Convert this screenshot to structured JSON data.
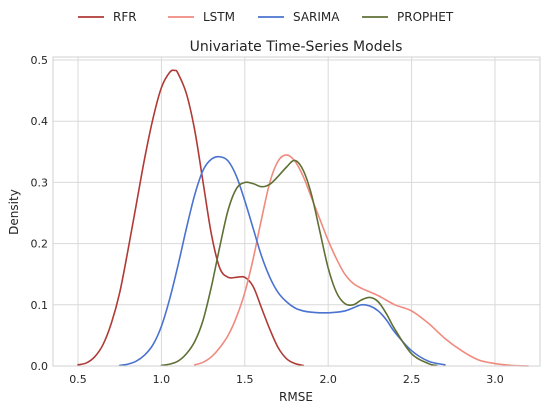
{
  "chart_data": {
    "type": "line",
    "title": "Univariate Time-Series Models",
    "xlabel": "RMSE",
    "ylabel": "Density",
    "xlim": [
      0.35,
      3.27
    ],
    "ylim": [
      0.0,
      0.505
    ],
    "xticks": [
      0.5,
      1.0,
      1.5,
      2.0,
      2.5,
      3.0
    ],
    "xtick_labels": [
      "0.5",
      "1.0",
      "1.5",
      "2.0",
      "2.5",
      "3.0"
    ],
    "yticks": [
      0.0,
      0.1,
      0.2,
      0.3,
      0.4,
      0.5
    ],
    "ytick_labels": [
      "0.0",
      "0.1",
      "0.2",
      "0.3",
      "0.4",
      "0.5"
    ],
    "grid": true,
    "legend_position": "top-center",
    "series": [
      {
        "name": "RFR",
        "color": "#b03a36",
        "x": [
          0.5,
          0.55,
          0.6,
          0.65,
          0.7,
          0.75,
          0.8,
          0.85,
          0.9,
          0.95,
          1.0,
          1.05,
          1.08,
          1.1,
          1.15,
          1.2,
          1.25,
          1.3,
          1.35,
          1.4,
          1.45,
          1.5,
          1.55,
          1.6,
          1.65,
          1.7,
          1.75,
          1.8,
          1.85
        ],
        "y": [
          0.002,
          0.005,
          0.015,
          0.035,
          0.07,
          0.12,
          0.19,
          0.265,
          0.34,
          0.405,
          0.455,
          0.48,
          0.483,
          0.478,
          0.445,
          0.385,
          0.3,
          0.215,
          0.16,
          0.145,
          0.145,
          0.145,
          0.13,
          0.095,
          0.06,
          0.03,
          0.012,
          0.004,
          0.001
        ]
      },
      {
        "name": "LSTM",
        "color": "#f08a7e",
        "x": [
          1.2,
          1.25,
          1.3,
          1.35,
          1.4,
          1.45,
          1.5,
          1.55,
          1.6,
          1.65,
          1.7,
          1.75,
          1.8,
          1.85,
          1.9,
          1.95,
          2.0,
          2.05,
          2.1,
          2.15,
          2.2,
          2.3,
          2.4,
          2.5,
          2.6,
          2.7,
          2.8,
          2.9,
          3.0,
          3.1,
          3.2
        ],
        "y": [
          0.002,
          0.006,
          0.015,
          0.03,
          0.05,
          0.08,
          0.12,
          0.175,
          0.24,
          0.3,
          0.335,
          0.345,
          0.335,
          0.31,
          0.275,
          0.24,
          0.205,
          0.175,
          0.15,
          0.135,
          0.127,
          0.115,
          0.1,
          0.09,
          0.07,
          0.045,
          0.025,
          0.01,
          0.004,
          0.001,
          0.0
        ]
      },
      {
        "name": "SARIMA",
        "color": "#4a72d0",
        "x": [
          0.75,
          0.8,
          0.85,
          0.9,
          0.95,
          1.0,
          1.05,
          1.1,
          1.15,
          1.2,
          1.25,
          1.3,
          1.35,
          1.4,
          1.45,
          1.5,
          1.55,
          1.6,
          1.65,
          1.7,
          1.75,
          1.8,
          1.85,
          1.9,
          1.95,
          2.0,
          2.05,
          2.1,
          2.15,
          2.2,
          2.25,
          2.3,
          2.35,
          2.4,
          2.5,
          2.6,
          2.7
        ],
        "y": [
          0.001,
          0.003,
          0.008,
          0.018,
          0.035,
          0.065,
          0.11,
          0.165,
          0.225,
          0.28,
          0.32,
          0.338,
          0.342,
          0.335,
          0.31,
          0.27,
          0.225,
          0.18,
          0.145,
          0.12,
          0.105,
          0.095,
          0.09,
          0.088,
          0.087,
          0.087,
          0.088,
          0.09,
          0.095,
          0.1,
          0.098,
          0.09,
          0.075,
          0.055,
          0.025,
          0.008,
          0.002
        ]
      },
      {
        "name": "PROPHET",
        "color": "#5f7035",
        "x": [
          1.0,
          1.05,
          1.1,
          1.15,
          1.2,
          1.25,
          1.3,
          1.35,
          1.4,
          1.45,
          1.5,
          1.55,
          1.6,
          1.65,
          1.7,
          1.75,
          1.8,
          1.85,
          1.9,
          1.95,
          2.0,
          2.05,
          2.1,
          2.15,
          2.2,
          2.25,
          2.3,
          2.35,
          2.4,
          2.5,
          2.6,
          2.65
        ],
        "y": [
          0.001,
          0.003,
          0.008,
          0.02,
          0.04,
          0.075,
          0.13,
          0.195,
          0.255,
          0.29,
          0.3,
          0.298,
          0.293,
          0.297,
          0.31,
          0.325,
          0.336,
          0.32,
          0.28,
          0.22,
          0.16,
          0.12,
          0.102,
          0.1,
          0.108,
          0.112,
          0.105,
          0.085,
          0.06,
          0.02,
          0.004,
          0.001
        ]
      }
    ]
  }
}
